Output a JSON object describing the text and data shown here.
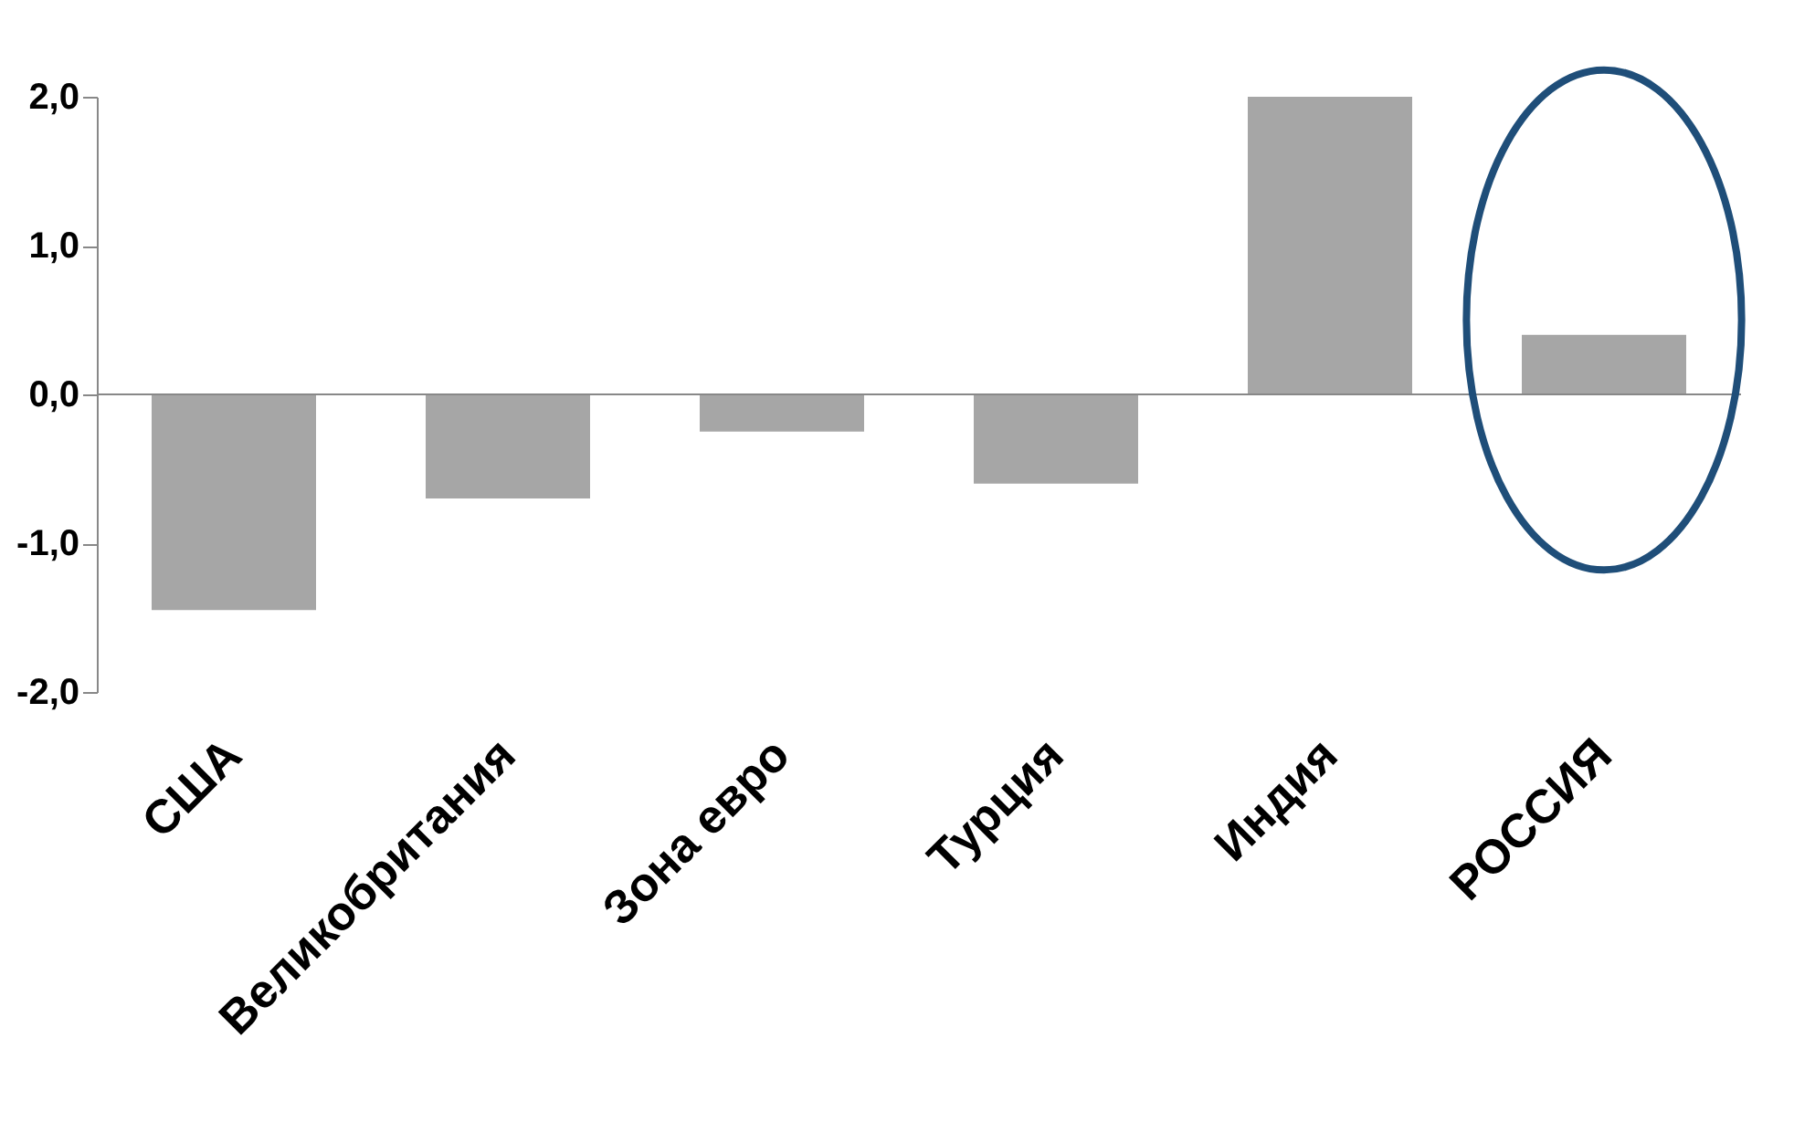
{
  "chart_data": {
    "type": "bar",
    "categories": [
      "США",
      "Великобритания",
      "Зона евро",
      "Турция",
      "Индия",
      "РОССИЯ"
    ],
    "values": [
      -1.45,
      -0.7,
      -0.25,
      -0.6,
      2.0,
      0.4
    ],
    "color": "#a6a6a6",
    "ylim": [
      -2.0,
      2.0
    ],
    "yticks": [
      {
        "value": -2,
        "label": "-2,0"
      },
      {
        "value": -1,
        "label": "-1,0"
      },
      {
        "value": 0,
        "label": "0,0"
      },
      {
        "value": 1,
        "label": "1,0"
      },
      {
        "value": 2,
        "label": "2,0"
      }
    ],
    "ref_lines": [
      {
        "axis": "y",
        "value": 0,
        "color": "#888888"
      }
    ],
    "grid": false
  }
}
